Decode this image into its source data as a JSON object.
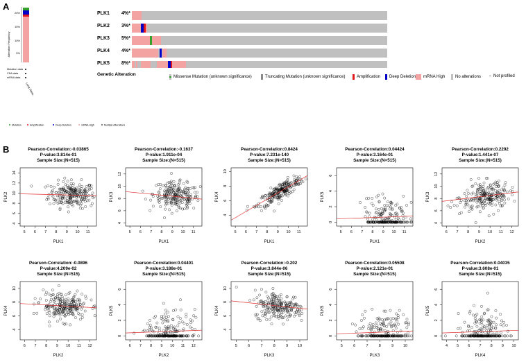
{
  "panel_a": {
    "label": "A",
    "side": {
      "y_axis_label": "Alteration Frequency",
      "ticks": [
        "20%",
        "15%",
        "10%",
        "5%"
      ],
      "row_labels": [
        "Mutation data",
        "CNA data",
        "mRNA data"
      ],
      "study_label": "Lung Squamous Cell Carcinoma",
      "legend": [
        "Mutation",
        "Amplification",
        "Deep Deletion",
        "mRNA High",
        "Multiple Alterations"
      ]
    },
    "genes": [
      {
        "name": "PLK1",
        "pct": "4%*"
      },
      {
        "name": "PLK2",
        "pct": "3%*"
      },
      {
        "name": "PLK3",
        "pct": "5%*"
      },
      {
        "name": "PLK4",
        "pct": "4%*"
      },
      {
        "name": "PLK5",
        "pct": "8%*"
      }
    ],
    "legend_title": "Genetic Alteration",
    "legend": [
      {
        "label": "Missense Mutation (unknown significance)",
        "color": "#33a02c"
      },
      {
        "label": "Truncating Mutation (unknown significance)",
        "color": "#888888"
      },
      {
        "label": "Amplification",
        "color": "#e31a1c"
      },
      {
        "label": "Deep Deletion",
        "color": "#0000c8"
      },
      {
        "label": "mRNA High",
        "color": "#f4a3a3"
      },
      {
        "label": "No alterations",
        "color": "#c0c0c0"
      },
      {
        "label": "Not profiled",
        "color": "#ffffff"
      }
    ]
  },
  "panel_b": {
    "label": "B"
  },
  "chart_data": [
    {
      "type": "scatter",
      "title1": "Pearson-Correlation:-0.03865",
      "title2": "P-value:3.814e-01",
      "title3": "Sample Size:(N=515)",
      "xlabel": "PLK1",
      "ylabel": "PLK2",
      "xlim": [
        4.6,
        11.8
      ],
      "ylim": [
        3.5,
        15
      ],
      "xticks": [
        5,
        6,
        7,
        8,
        9,
        10,
        11
      ],
      "yticks": [
        4,
        6,
        8,
        10,
        12,
        14
      ],
      "cx": 9.5,
      "sx": 1.1,
      "cy": 9.7,
      "sy": 1.3,
      "slope": -0.05,
      "intercept": 10.1,
      "floor": null
    },
    {
      "type": "scatter",
      "title1": "Pearson-Correlation:-0.1637",
      "title2": "P-value:1.911e-04",
      "title3": "Sample Size:(N=515)",
      "xlabel": "PLK1",
      "ylabel": "PLK3",
      "xlim": [
        4.6,
        11.8
      ],
      "ylim": [
        3.5,
        13
      ],
      "xticks": [
        5,
        6,
        7,
        8,
        9,
        10,
        11
      ],
      "yticks": [
        4,
        6,
        8,
        10,
        12
      ],
      "cx": 9.4,
      "sx": 1.1,
      "cy": 8.4,
      "sy": 1.1,
      "slope": -0.17,
      "intercept": 9.9,
      "floor": null
    },
    {
      "type": "scatter",
      "title1": "Pearson-Correlation:0.8424",
      "title2": "P-value:7.231e-140",
      "title3": "Sample Size:(N=515)",
      "xlabel": "PLK1",
      "ylabel": "PLK4",
      "xlim": [
        4.6,
        11.8
      ],
      "ylim": [
        2.5,
        10.5
      ],
      "xticks": [
        5,
        6,
        7,
        8,
        9,
        10,
        11
      ],
      "yticks": [
        4,
        6,
        8,
        10
      ],
      "cx": 9.3,
      "sx": 1.1,
      "cy": null,
      "sy": 0.55,
      "slope": 0.85,
      "intercept": -0.6,
      "floor": null
    },
    {
      "type": "scatter",
      "title1": "Pearson-Correlation:0.04424",
      "title2": "P-value:3.164e-01",
      "title3": "Sample Size:(N=515)",
      "xlabel": "PLK1",
      "ylabel": "PLK5",
      "xlim": [
        4.6,
        11.8
      ],
      "ylim": [
        -0.5,
        7
      ],
      "xticks": [
        5,
        6,
        7,
        8,
        9,
        10,
        11
      ],
      "yticks": [
        0,
        2,
        4,
        6
      ],
      "cx": 9.3,
      "sx": 1.1,
      "cy": 1.2,
      "sy": 1.2,
      "slope": 0.05,
      "intercept": 0.2,
      "floor": 0
    },
    {
      "type": "scatter",
      "title1": "Pearson-Correlation:0.2292",
      "title2": "P-value:1.441e-07",
      "title3": "Sample Size:(N=515)",
      "xlabel": "PLK2",
      "ylabel": "PLK3",
      "xlim": [
        5.6,
        12.6
      ],
      "ylim": [
        3.5,
        13
      ],
      "xticks": [
        6,
        7,
        8,
        9,
        10,
        11,
        12
      ],
      "yticks": [
        4,
        6,
        8,
        10,
        12
      ],
      "cx": 9.6,
      "sx": 1.1,
      "cy": 8.4,
      "sy": 1.1,
      "slope": 0.22,
      "intercept": 6.3,
      "floor": null
    },
    {
      "type": "scatter",
      "title1": "Pearson-Correlation:-0.0896",
      "title2": "P-value:4.209e-02",
      "title3": "Sample Size:(N=515)",
      "xlabel": "PLK2",
      "ylabel": "PLK4",
      "xlim": [
        5.6,
        12.6
      ],
      "ylim": [
        2.5,
        11
      ],
      "xticks": [
        6,
        7,
        8,
        9,
        10,
        11,
        12
      ],
      "yticks": [
        4,
        6,
        8,
        10
      ],
      "cx": 9.6,
      "sx": 1.1,
      "cy": 7.4,
      "sy": 1.0,
      "slope": -0.09,
      "intercept": 8.3,
      "floor": null
    },
    {
      "type": "scatter",
      "title1": "Pearson-Correlation:0.04401",
      "title2": "P-value:3.188e-01",
      "title3": "Sample Size:(N=515)",
      "xlabel": "PLK2",
      "ylabel": "PLK5",
      "xlim": [
        5.6,
        12.8
      ],
      "ylim": [
        -0.5,
        7
      ],
      "xticks": [
        6,
        7,
        8,
        9,
        10,
        11,
        12
      ],
      "yticks": [
        0,
        2,
        4,
        6
      ],
      "cx": 9.7,
      "sx": 1.1,
      "cy": 1.2,
      "sy": 1.2,
      "slope": 0.05,
      "intercept": 0.1,
      "floor": 0
    },
    {
      "type": "scatter",
      "title1": "Pearson-Correlation:-0.202",
      "title2": "P-value:3.844e-06",
      "title3": "Sample Size:(N=515)",
      "xlabel": "PLK3",
      "ylabel": "PLK4",
      "xlim": [
        4.6,
        10.6
      ],
      "ylim": [
        2.5,
        11
      ],
      "xticks": [
        5,
        6,
        7,
        8,
        9,
        10
      ],
      "yticks": [
        4,
        6,
        8,
        10
      ],
      "cx": 8.4,
      "sx": 1.0,
      "cy": 7.4,
      "sy": 1.0,
      "slope": -0.2,
      "intercept": 9.1,
      "floor": null
    },
    {
      "type": "scatter",
      "title1": "Pearson-Correlation:0.05508",
      "title2": "P-value:2.121e-01",
      "title3": "Sample Size:(N=515)",
      "xlabel": "PLK3",
      "ylabel": "PLK5",
      "xlim": [
        4.6,
        10.6
      ],
      "ylim": [
        -0.5,
        7
      ],
      "xticks": [
        5,
        6,
        7,
        8,
        9,
        10
      ],
      "yticks": [
        0,
        2,
        4,
        6
      ],
      "cx": 8.4,
      "sx": 1.0,
      "cy": 1.2,
      "sy": 1.2,
      "slope": 0.06,
      "intercept": 0.0,
      "floor": 0
    },
    {
      "type": "scatter",
      "title1": "Pearson-Correlation:0.04035",
      "title2": "P-value:3.608e-01",
      "title3": "Sample Size:(N=515)",
      "xlabel": "PLK4",
      "ylabel": "PLK5",
      "xlim": [
        3.6,
        10.4
      ],
      "ylim": [
        -0.5,
        7
      ],
      "xticks": [
        4,
        5,
        6,
        7,
        8,
        9,
        10
      ],
      "yticks": [
        0,
        2,
        4,
        6
      ],
      "cx": 7.3,
      "sx": 1.0,
      "cy": 1.2,
      "sy": 1.2,
      "slope": 0.05,
      "intercept": 0.2,
      "floor": 0
    }
  ]
}
